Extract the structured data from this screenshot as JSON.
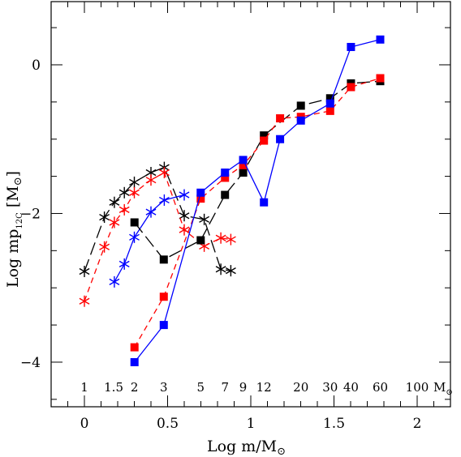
{
  "chart_data": {
    "type": "line",
    "xlabel": "Log m/M",
    "xlabel_sym": "⊙",
    "ylabel_main": "Log mp",
    "ylabel_sub": "12C",
    "ylabel_unit": "[M",
    "ylabel_unit_sym": "⊙",
    "ylabel_unit_end": "]",
    "xlim": [
      -0.2,
      2.2
    ],
    "ylim": [
      -4.6,
      0.85
    ],
    "x_ticks": [
      "0",
      "0.5",
      "1",
      "1.5",
      "2"
    ],
    "y_ticks": [
      "0",
      "-2",
      "-4"
    ],
    "mass_labels": [
      {
        "text": "1",
        "x": 0.0
      },
      {
        "text": "1.5",
        "x": 0.176
      },
      {
        "text": "2",
        "x": 0.301
      },
      {
        "text": "3",
        "x": 0.477
      },
      {
        "text": "5",
        "x": 0.699
      },
      {
        "text": "7",
        "x": 0.845
      },
      {
        "text": "9",
        "x": 0.954
      },
      {
        "text": "12",
        "x": 1.079
      },
      {
        "text": "20",
        "x": 1.301
      },
      {
        "text": "30",
        "x": 1.477
      },
      {
        "text": "40",
        "x": 1.602
      },
      {
        "text": "60",
        "x": 1.778
      },
      {
        "text": "100",
        "x": 2.0
      }
    ],
    "mass_unit": "M",
    "mass_unit_sym": "⊙",
    "series": [
      {
        "marker": "star",
        "color": "#000000",
        "dash": "long",
        "points": [
          [
            0.0,
            -2.78
          ],
          [
            0.12,
            -2.05
          ],
          [
            0.18,
            -1.85
          ],
          [
            0.24,
            -1.72
          ],
          [
            0.3,
            -1.58
          ],
          [
            0.4,
            -1.45
          ],
          [
            0.48,
            -1.38
          ],
          [
            0.6,
            -2.03
          ],
          [
            0.72,
            -2.08
          ],
          [
            0.82,
            -2.75
          ],
          [
            0.88,
            -2.77
          ]
        ]
      },
      {
        "marker": "star",
        "color": "#ff0000",
        "dash": "short",
        "points": [
          [
            0.0,
            -3.18
          ],
          [
            0.12,
            -2.45
          ],
          [
            0.18,
            -2.12
          ],
          [
            0.24,
            -1.95
          ],
          [
            0.3,
            -1.72
          ],
          [
            0.4,
            -1.55
          ],
          [
            0.48,
            -1.45
          ],
          [
            0.6,
            -2.22
          ],
          [
            0.72,
            -2.44
          ],
          [
            0.82,
            -2.33
          ],
          [
            0.88,
            -2.35
          ]
        ]
      },
      {
        "marker": "star",
        "color": "#0000ff",
        "dash": "solid",
        "points": [
          [
            0.18,
            -2.92
          ],
          [
            0.24,
            -2.68
          ],
          [
            0.3,
            -2.32
          ],
          [
            0.4,
            -1.98
          ],
          [
            0.48,
            -1.82
          ],
          [
            0.6,
            -1.75
          ]
        ]
      },
      {
        "marker": "square",
        "color": "#000000",
        "dash": "long",
        "points": [
          [
            0.301,
            -2.12
          ],
          [
            0.477,
            -2.62
          ],
          [
            0.699,
            -2.36
          ],
          [
            0.845,
            -1.75
          ],
          [
            0.954,
            -1.45
          ],
          [
            1.079,
            -0.95
          ],
          [
            1.301,
            -0.55
          ],
          [
            1.477,
            -0.45
          ],
          [
            1.602,
            -0.25
          ],
          [
            1.778,
            -0.22
          ]
        ]
      },
      {
        "marker": "square",
        "color": "#ff0000",
        "dash": "short",
        "points": [
          [
            0.301,
            -3.8
          ],
          [
            0.477,
            -3.12
          ],
          [
            0.699,
            -1.8
          ],
          [
            0.845,
            -1.52
          ],
          [
            0.954,
            -1.35
          ],
          [
            1.079,
            -1.02
          ],
          [
            1.176,
            -0.72
          ],
          [
            1.301,
            -0.7
          ],
          [
            1.477,
            -0.62
          ],
          [
            1.602,
            -0.3
          ],
          [
            1.778,
            -0.18
          ]
        ]
      },
      {
        "marker": "square",
        "color": "#0000ff",
        "dash": "solid",
        "points": [
          [
            0.301,
            -4.0
          ],
          [
            0.477,
            -3.5
          ],
          [
            0.699,
            -1.72
          ],
          [
            0.845,
            -1.45
          ],
          [
            0.954,
            -1.28
          ],
          [
            1.079,
            -1.85
          ],
          [
            1.176,
            -1.0
          ],
          [
            1.301,
            -0.75
          ],
          [
            1.477,
            -0.52
          ],
          [
            1.602,
            0.24
          ],
          [
            1.778,
            0.34
          ]
        ]
      }
    ]
  }
}
